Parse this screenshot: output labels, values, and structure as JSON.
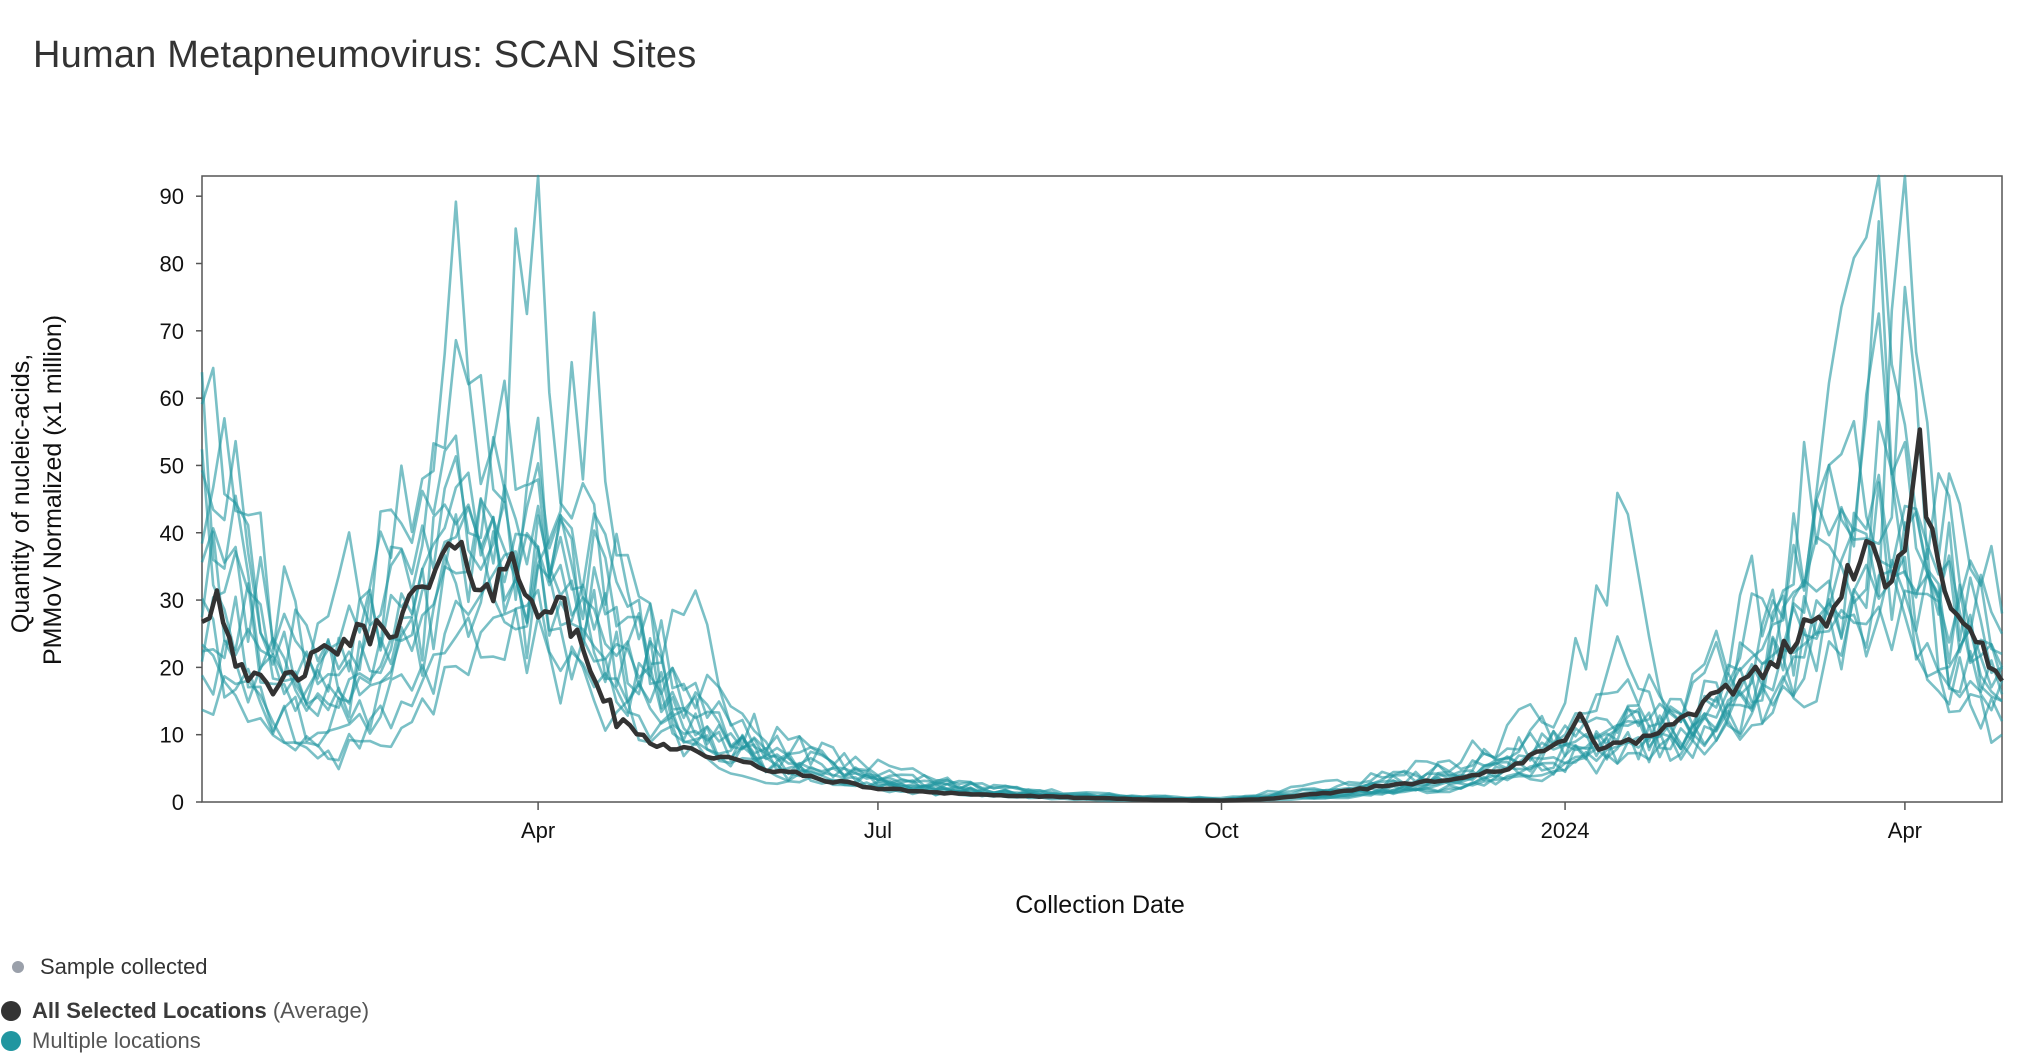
{
  "title": "Human Metapneumovirus: SCAN Sites",
  "legend": {
    "sample_label": "Sample collected",
    "average_label": "All Selected Locations",
    "average_suffix": "(Average)",
    "multiple_label": "Multiple locations"
  },
  "colors": {
    "average": "#333333",
    "locations": "#2196a0",
    "sample": "#9aa0aa"
  },
  "chart_data": {
    "type": "line",
    "title": "Human Metapneumovirus: SCAN Sites",
    "xlabel": "Collection Date",
    "ylabel_lines": [
      "Quantity of nucleic-acids,",
      "PMMoV Normalized (x1 million)"
    ],
    "ylim": [
      0,
      93
    ],
    "xlim": [
      "2023-01-01",
      "2024-04-27"
    ],
    "y_ticks": [
      0,
      10,
      20,
      30,
      40,
      50,
      60,
      70,
      80,
      90
    ],
    "x_ticks": [
      {
        "date": "2023-04-01",
        "label": "Apr"
      },
      {
        "date": "2023-07-01",
        "label": "Jul"
      },
      {
        "date": "2023-10-01",
        "label": "Oct"
      },
      {
        "date": "2024-01-01",
        "label": "2024"
      },
      {
        "date": "2024-04-01",
        "label": "Apr"
      }
    ],
    "grid": false,
    "legend_position": "bottom-left",
    "average_series": {
      "name": "All Selected Locations",
      "x": [
        "2023-01-01",
        "2023-01-05",
        "2023-01-10",
        "2023-01-15",
        "2023-01-20",
        "2023-01-25",
        "2023-02-01",
        "2023-02-08",
        "2023-02-15",
        "2023-02-22",
        "2023-03-01",
        "2023-03-08",
        "2023-03-15",
        "2023-03-20",
        "2023-03-25",
        "2023-04-01",
        "2023-04-08",
        "2023-04-15",
        "2023-04-22",
        "2023-05-01",
        "2023-05-10",
        "2023-05-20",
        "2023-06-01",
        "2023-06-15",
        "2023-07-01",
        "2023-07-15",
        "2023-08-01",
        "2023-08-15",
        "2023-09-01",
        "2023-09-15",
        "2023-10-01",
        "2023-10-15",
        "2023-11-01",
        "2023-11-15",
        "2023-12-01",
        "2023-12-15",
        "2024-01-01",
        "2024-01-05",
        "2024-01-10",
        "2024-01-20",
        "2024-02-01",
        "2024-02-15",
        "2024-02-25",
        "2024-03-05",
        "2024-03-15",
        "2024-03-20",
        "2024-03-25",
        "2024-04-01",
        "2024-04-05",
        "2024-04-10",
        "2024-04-15",
        "2024-04-20",
        "2024-04-27"
      ],
      "y": [
        28,
        31,
        22,
        18,
        16,
        19,
        21,
        24,
        25,
        27,
        31,
        37,
        34,
        32,
        35,
        30,
        28,
        20,
        12,
        9,
        8,
        6.5,
        5,
        3.5,
        2,
        1.5,
        1,
        0.8,
        0.5,
        0.3,
        0.2,
        0.5,
        1.5,
        2.5,
        3.5,
        4.5,
        9,
        14,
        8,
        9,
        12,
        17,
        21,
        25,
        30,
        38,
        34,
        35,
        52,
        33,
        26,
        24,
        18
      ]
    },
    "locations_series_count": 13,
    "locations_series": [
      {
        "x": [
          "2023-01-01",
          "2023-01-10",
          "2023-01-20",
          "2023-02-01",
          "2023-02-15",
          "2023-03-01",
          "2023-03-10",
          "2023-03-20",
          "2023-04-01",
          "2023-04-10",
          "2023-04-25",
          "2023-05-10",
          "2023-06-01",
          "2023-07-01",
          "2023-08-01",
          "2023-09-01",
          "2023-10-01",
          "2023-11-01",
          "2023-12-01",
          "2024-01-01",
          "2024-01-15",
          "2024-02-01",
          "2024-02-20",
          "2024-03-05",
          "2024-03-15",
          "2024-03-25",
          "2024-04-01",
          "2024-04-10",
          "2024-04-27"
        ],
        "y": [
          55,
          40,
          22,
          20,
          30,
          45,
          70,
          60,
          45,
          35,
          25,
          15,
          8,
          4,
          2,
          1,
          0.5,
          2,
          5,
          12,
          18,
          15,
          30,
          40,
          55,
          45,
          60,
          38,
          25
        ]
      },
      {
        "x": [
          "2023-01-01",
          "2023-01-10",
          "2023-01-20",
          "2023-02-01",
          "2023-02-15",
          "2023-03-01",
          "2023-03-10",
          "2023-03-20",
          "2023-04-01",
          "2023-04-10",
          "2023-04-25",
          "2023-05-10",
          "2023-06-01",
          "2023-07-01",
          "2023-08-01",
          "2023-09-01",
          "2023-10-01",
          "2023-11-01",
          "2023-12-01",
          "2024-01-01",
          "2024-01-15",
          "2024-02-01",
          "2024-02-20",
          "2024-03-05",
          "2024-03-15",
          "2024-03-25",
          "2024-04-01",
          "2024-04-10",
          "2024-04-27"
        ],
        "y": [
          35,
          50,
          28,
          18,
          22,
          35,
          55,
          48,
          92,
          40,
          30,
          18,
          9,
          5,
          2,
          1,
          0.3,
          3,
          4,
          10,
          14,
          10,
          20,
          35,
          75,
          88,
          45,
          35,
          20
        ]
      },
      {
        "x": [
          "2023-01-01",
          "2023-01-10",
          "2023-01-20",
          "2023-02-01",
          "2023-02-15",
          "2023-03-01",
          "2023-03-10",
          "2023-03-20",
          "2023-04-01",
          "2023-04-10",
          "2023-04-25",
          "2023-05-10",
          "2023-06-01",
          "2023-07-01",
          "2023-08-01",
          "2023-09-01",
          "2023-10-01",
          "2023-11-01",
          "2023-12-01",
          "2024-01-01",
          "2024-01-15",
          "2024-02-01",
          "2024-02-20",
          "2024-03-05",
          "2024-03-15",
          "2024-03-25",
          "2024-04-01",
          "2024-04-10",
          "2024-04-27"
        ],
        "y": [
          20,
          25,
          15,
          10,
          15,
          25,
          35,
          40,
          30,
          28,
          20,
          12,
          6,
          3,
          1.5,
          0.8,
          0.5,
          1,
          2,
          6,
          8,
          10,
          15,
          25,
          30,
          35,
          92,
          40,
          28
        ]
      },
      {
        "x": [
          "2023-01-01",
          "2023-01-10",
          "2023-01-20",
          "2023-02-01",
          "2023-02-15",
          "2023-03-01",
          "2023-03-10",
          "2023-03-20",
          "2023-04-01",
          "2023-04-10",
          "2023-04-25",
          "2023-05-10",
          "2023-06-01",
          "2023-07-01",
          "2023-08-01",
          "2023-09-01",
          "2023-10-01",
          "2023-11-01",
          "2023-12-01",
          "2024-01-01",
          "2024-01-15",
          "2024-02-01",
          "2024-02-20",
          "2024-03-05",
          "2024-03-15",
          "2024-03-25",
          "2024-04-01",
          "2024-04-10",
          "2024-04-27"
        ],
        "y": [
          12,
          18,
          10,
          8,
          12,
          18,
          25,
          30,
          28,
          78,
          30,
          15,
          5,
          2,
          1,
          0.5,
          0.2,
          1,
          3,
          8,
          20,
          12,
          18,
          28,
          30,
          40,
          35,
          30,
          20
        ]
      },
      {
        "x": [
          "2023-01-01",
          "2023-01-10",
          "2023-01-20",
          "2023-02-01",
          "2023-02-15",
          "2023-03-01",
          "2023-03-10",
          "2023-03-20",
          "2023-04-01",
          "2023-04-10",
          "2023-04-25",
          "2023-05-10",
          "2023-06-01",
          "2023-07-01",
          "2023-08-01",
          "2023-09-01",
          "2023-10-01",
          "2023-11-01",
          "2023-12-01",
          "2024-01-01",
          "2024-01-15",
          "2024-02-01",
          "2024-02-20",
          "2024-03-05",
          "2024-03-15",
          "2024-03-25",
          "2024-04-01",
          "2024-04-10",
          "2024-04-27"
        ],
        "y": [
          45,
          30,
          20,
          15,
          20,
          30,
          40,
          35,
          30,
          25,
          18,
          10,
          6,
          3,
          1.5,
          0.6,
          0.3,
          1.5,
          4,
          6,
          10,
          15,
          25,
          45,
          50,
          40,
          38,
          30,
          15
        ]
      },
      {
        "x": [
          "2023-01-01",
          "2023-01-10",
          "2023-01-20",
          "2023-02-01",
          "2023-02-15",
          "2023-03-01",
          "2023-03-10",
          "2023-03-20",
          "2023-04-01",
          "2023-04-10",
          "2023-04-25",
          "2023-05-10",
          "2023-06-01",
          "2023-07-01",
          "2023-08-01",
          "2023-09-01",
          "2023-10-01",
          "2023-11-01",
          "2023-12-01",
          "2024-01-01",
          "2024-01-15",
          "2024-02-01",
          "2024-02-20",
          "2024-03-05",
          "2024-03-15",
          "2024-03-25",
          "2024-04-01",
          "2024-04-10",
          "2024-04-27"
        ],
        "y": [
          30,
          35,
          25,
          20,
          28,
          35,
          45,
          42,
          38,
          32,
          22,
          14,
          7,
          3,
          1.2,
          0.4,
          0.2,
          2,
          6,
          14,
          44,
          8,
          12,
          20,
          35,
          60,
          30,
          25,
          18
        ]
      },
      {
        "x": [
          "2023-01-01",
          "2023-01-10",
          "2023-01-20",
          "2023-02-01",
          "2023-02-15",
          "2023-03-01",
          "2023-03-10",
          "2023-03-20",
          "2023-04-01",
          "2023-04-10",
          "2023-04-25",
          "2023-05-10",
          "2023-06-01",
          "2023-07-01",
          "2023-08-01",
          "2023-09-01",
          "2023-10-01",
          "2023-11-01",
          "2023-12-01",
          "2024-01-01",
          "2024-01-15",
          "2024-02-01",
          "2024-02-20",
          "2024-03-05",
          "2024-03-15",
          "2024-03-25",
          "2024-04-01",
          "2024-04-10",
          "2024-04-27"
        ],
        "y": [
          25,
          20,
          12,
          8,
          10,
          15,
          22,
          28,
          25,
          20,
          15,
          10,
          5,
          2.5,
          1,
          0.5,
          0.3,
          1,
          2,
          5,
          6,
          8,
          12,
          18,
          25,
          30,
          28,
          22,
          12
        ]
      },
      {
        "x": [
          "2023-01-01",
          "2023-01-10",
          "2023-01-20",
          "2023-02-01",
          "2023-02-15",
          "2023-03-01",
          "2023-03-10",
          "2023-03-20",
          "2023-04-01",
          "2023-04-10",
          "2023-04-25",
          "2023-05-10",
          "2023-06-01",
          "2023-07-01",
          "2023-08-01",
          "2023-09-01",
          "2023-10-01",
          "2023-11-01",
          "2023-12-01",
          "2024-01-01",
          "2024-01-15",
          "2024-02-01",
          "2024-02-20",
          "2024-03-05",
          "2024-03-15",
          "2024-03-25",
          "2024-04-01",
          "2024-04-10",
          "2024-04-27"
        ],
        "y": [
          40,
          45,
          30,
          25,
          35,
          38,
          50,
          45,
          40,
          35,
          28,
          20,
          10,
          4,
          2,
          1,
          0.4,
          1.5,
          5,
          10,
          12,
          14,
          22,
          32,
          40,
          70,
          50,
          35,
          22
        ]
      },
      {
        "x": [
          "2023-01-01",
          "2023-01-10",
          "2023-01-20",
          "2023-02-01",
          "2023-02-15",
          "2023-03-01",
          "2023-03-10",
          "2023-03-20",
          "2023-04-01",
          "2023-04-10",
          "2023-04-25",
          "2023-05-10",
          "2023-06-01",
          "2023-07-01",
          "2023-08-01",
          "2023-09-01",
          "2023-10-01",
          "2023-11-01",
          "2023-12-01",
          "2024-01-01",
          "2024-01-15",
          "2024-02-01",
          "2024-02-20",
          "2024-03-05",
          "2024-03-15",
          "2024-03-25",
          "2024-04-01",
          "2024-04-10",
          "2024-04-27"
        ],
        "y": [
          15,
          22,
          18,
          12,
          20,
          28,
          32,
          38,
          35,
          30,
          22,
          32,
          8,
          4,
          1.8,
          0.7,
          0.3,
          2,
          4,
          9,
          12,
          10,
          15,
          22,
          28,
          32,
          35,
          20,
          10
        ]
      },
      {
        "x": [
          "2023-01-01",
          "2023-01-10",
          "2023-01-20",
          "2023-02-01",
          "2023-02-15",
          "2023-03-01",
          "2023-03-10",
          "2023-03-20",
          "2023-04-01",
          "2023-04-10",
          "2023-04-25",
          "2023-05-10",
          "2023-06-01",
          "2023-07-01",
          "2023-08-01",
          "2023-09-01",
          "2023-10-01",
          "2023-11-01",
          "2023-12-01",
          "2024-01-01",
          "2024-01-15",
          "2024-02-01",
          "2024-02-20",
          "2024-03-05",
          "2024-03-15",
          "2024-03-25",
          "2024-04-01",
          "2024-04-10",
          "2024-04-27"
        ],
        "y": [
          50,
          35,
          22,
          15,
          18,
          25,
          38,
          30,
          28,
          40,
          25,
          16,
          7,
          3,
          1.2,
          0.5,
          0.2,
          1,
          3,
          7,
          9,
          12,
          20,
          30,
          38,
          45,
          40,
          30,
          18
        ]
      },
      {
        "x": [
          "2023-01-01",
          "2023-01-10",
          "2023-01-20",
          "2023-02-01",
          "2023-02-15",
          "2023-03-01",
          "2023-03-10",
          "2023-03-20",
          "2023-04-01",
          "2023-04-10",
          "2023-04-25",
          "2023-05-10",
          "2023-06-01",
          "2023-07-01",
          "2023-08-01",
          "2023-09-01",
          "2023-10-01",
          "2023-11-01",
          "2023-12-01",
          "2024-01-01",
          "2024-01-15",
          "2024-02-01",
          "2024-02-20",
          "2024-03-05",
          "2024-03-15",
          "2024-03-25",
          "2024-04-01",
          "2024-04-10",
          "2024-04-27"
        ],
        "y": [
          18,
          15,
          10,
          6,
          8,
          12,
          20,
          25,
          22,
          18,
          12,
          8,
          4,
          2,
          0.8,
          0.3,
          0.2,
          0.8,
          2,
          5,
          7,
          9,
          14,
          20,
          25,
          30,
          32,
          25,
          15
        ]
      },
      {
        "x": [
          "2023-01-01",
          "2023-01-10",
          "2023-01-20",
          "2023-02-01",
          "2023-02-15",
          "2023-03-01",
          "2023-03-10",
          "2023-03-20",
          "2023-04-01",
          "2023-04-10",
          "2023-04-25",
          "2023-05-10",
          "2023-06-01",
          "2023-07-01",
          "2023-08-01",
          "2023-09-01",
          "2023-10-01",
          "2023-11-01",
          "2023-12-01",
          "2024-01-01",
          "2024-01-15",
          "2024-02-01",
          "2024-02-20",
          "2024-03-05",
          "2024-03-15",
          "2024-03-25",
          "2024-04-01",
          "2024-04-10",
          "2024-04-27"
        ],
        "y": [
          38,
          28,
          20,
          18,
          25,
          30,
          42,
          36,
          34,
          28,
          20,
          12,
          6,
          3,
          1.5,
          0.6,
          0.3,
          1.2,
          3,
          8,
          10,
          12,
          18,
          26,
          32,
          38,
          36,
          28,
          20
        ]
      },
      {
        "x": [
          "2023-01-01",
          "2023-01-10",
          "2023-01-20",
          "2023-02-01",
          "2023-02-15",
          "2023-03-01",
          "2023-03-10",
          "2023-03-20",
          "2023-04-01",
          "2023-04-10",
          "2023-04-25",
          "2023-05-10",
          "2023-06-01",
          "2023-07-01",
          "2023-08-01",
          "2023-09-01",
          "2023-10-01",
          "2023-11-01",
          "2023-12-01",
          "2024-01-01",
          "2024-01-15",
          "2024-02-01",
          "2024-02-20",
          "2024-03-05",
          "2024-03-15",
          "2024-03-25",
          "2024-04-01",
          "2024-04-10",
          "2024-04-27"
        ],
        "y": [
          28,
          32,
          24,
          16,
          22,
          26,
          34,
          32,
          30,
          26,
          18,
          11,
          5,
          2.5,
          1,
          0.4,
          0.2,
          0.6,
          2.5,
          6,
          8,
          10,
          16,
          24,
          28,
          34,
          30,
          24,
          16
        ]
      }
    ]
  }
}
